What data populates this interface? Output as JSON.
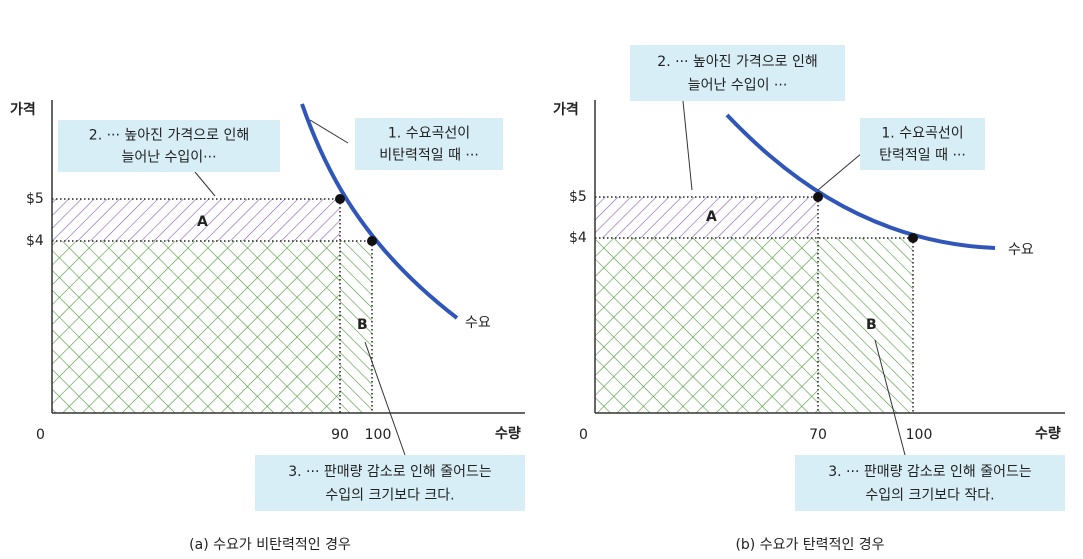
{
  "panels": [
    {
      "y_label": "가격",
      "x_label": "수량",
      "origin": "0",
      "y_ticks": [
        "$5",
        "$4"
      ],
      "x_ticks": [
        "90",
        "100"
      ],
      "curve_label": "수요",
      "areas": [
        "A",
        "B"
      ],
      "callouts": [
        [
          "1. 수요곡선이",
          "비탄력적일 때 ···"
        ],
        [
          "2. ··· 높아진 가격으로 인해",
          "늘어난 수입이···"
        ],
        [
          "3. ··· 판매량 감소로 인해 줄어드는",
          "수입의 크기보다 크다."
        ]
      ],
      "caption": "(a) 수요가 비탄력적인 경우"
    },
    {
      "y_label": "가격",
      "x_label": "수량",
      "origin": "0",
      "y_ticks": [
        "$5",
        "$4"
      ],
      "x_ticks": [
        "70",
        "100"
      ],
      "curve_label": "수요",
      "areas": [
        "A",
        "B"
      ],
      "callouts": [
        [
          "1. 수요곡선이",
          "탄력적일 때 ···"
        ],
        [
          "2. ··· 높아진 가격으로 인해",
          "늘어난 수입이 ···"
        ],
        [
          "3. ··· 판매량 감소로 인해 줄어드는",
          "수입의 크기보다 작다."
        ]
      ],
      "caption": "(b) 수요가 탄력적인 경우"
    }
  ]
}
